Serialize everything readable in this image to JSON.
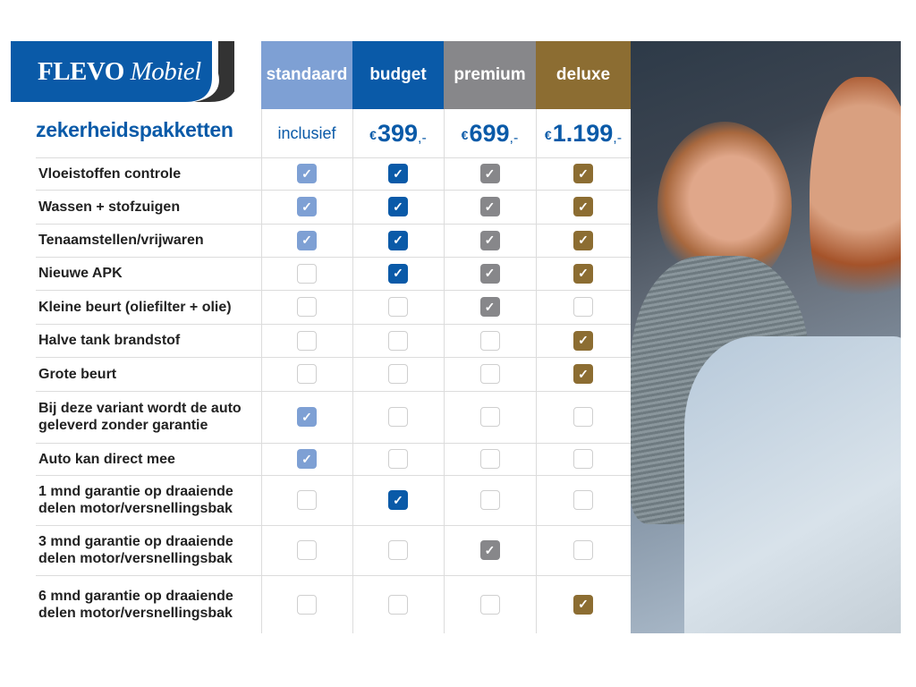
{
  "brand": {
    "name_part1": "FLEVO",
    "name_part2": "Mobiel",
    "color": "#0a5aa8"
  },
  "title": "zekerheidspakketten",
  "packages": [
    {
      "name": "standaard",
      "price_text": "inclusief",
      "color": "#7ea0d4"
    },
    {
      "name": "budget",
      "currency": "€",
      "price": "399",
      "suffix": ",-",
      "color": "#0a5aa8"
    },
    {
      "name": "premium",
      "currency": "€",
      "price": "699",
      "suffix": ",-",
      "color": "#87878a"
    },
    {
      "name": "deluxe",
      "currency": "€",
      "price": "1.199",
      "suffix": ",-",
      "color": "#8c6d32"
    }
  ],
  "features": [
    {
      "label": "Vloeistoffen controle",
      "checks": [
        true,
        true,
        true,
        true
      ]
    },
    {
      "label": "Wassen + stofzuigen",
      "checks": [
        true,
        true,
        true,
        true
      ]
    },
    {
      "label": "Tenaamstellen/vrijwaren",
      "checks": [
        true,
        true,
        true,
        true
      ]
    },
    {
      "label": "Nieuwe APK",
      "checks": [
        false,
        true,
        true,
        true
      ]
    },
    {
      "label": "Kleine beurt (oliefilter + olie)",
      "checks": [
        false,
        false,
        true,
        false
      ]
    },
    {
      "label": "Halve tank brandstof",
      "checks": [
        false,
        false,
        false,
        true
      ]
    },
    {
      "label": "Grote beurt",
      "checks": [
        false,
        false,
        false,
        true
      ]
    },
    {
      "label": "Bij deze variant wordt de auto geleverd zonder garantie",
      "checks": [
        true,
        false,
        false,
        false
      ]
    },
    {
      "label": "Auto kan direct mee",
      "checks": [
        true,
        false,
        false,
        false
      ]
    },
    {
      "label": "1 mnd garantie op draaiende delen motor/versnellingsbak",
      "checks": [
        false,
        true,
        false,
        false
      ]
    },
    {
      "label": "3 mnd garantie op draaiende delen motor/versnellingsbak",
      "checks": [
        false,
        false,
        true,
        false
      ]
    },
    {
      "label": "6 mnd garantie op draaiende delen motor/versnellingsbak",
      "checks": [
        false,
        false,
        false,
        true
      ]
    }
  ],
  "photo": {
    "icon": "couple-in-car-photo"
  }
}
